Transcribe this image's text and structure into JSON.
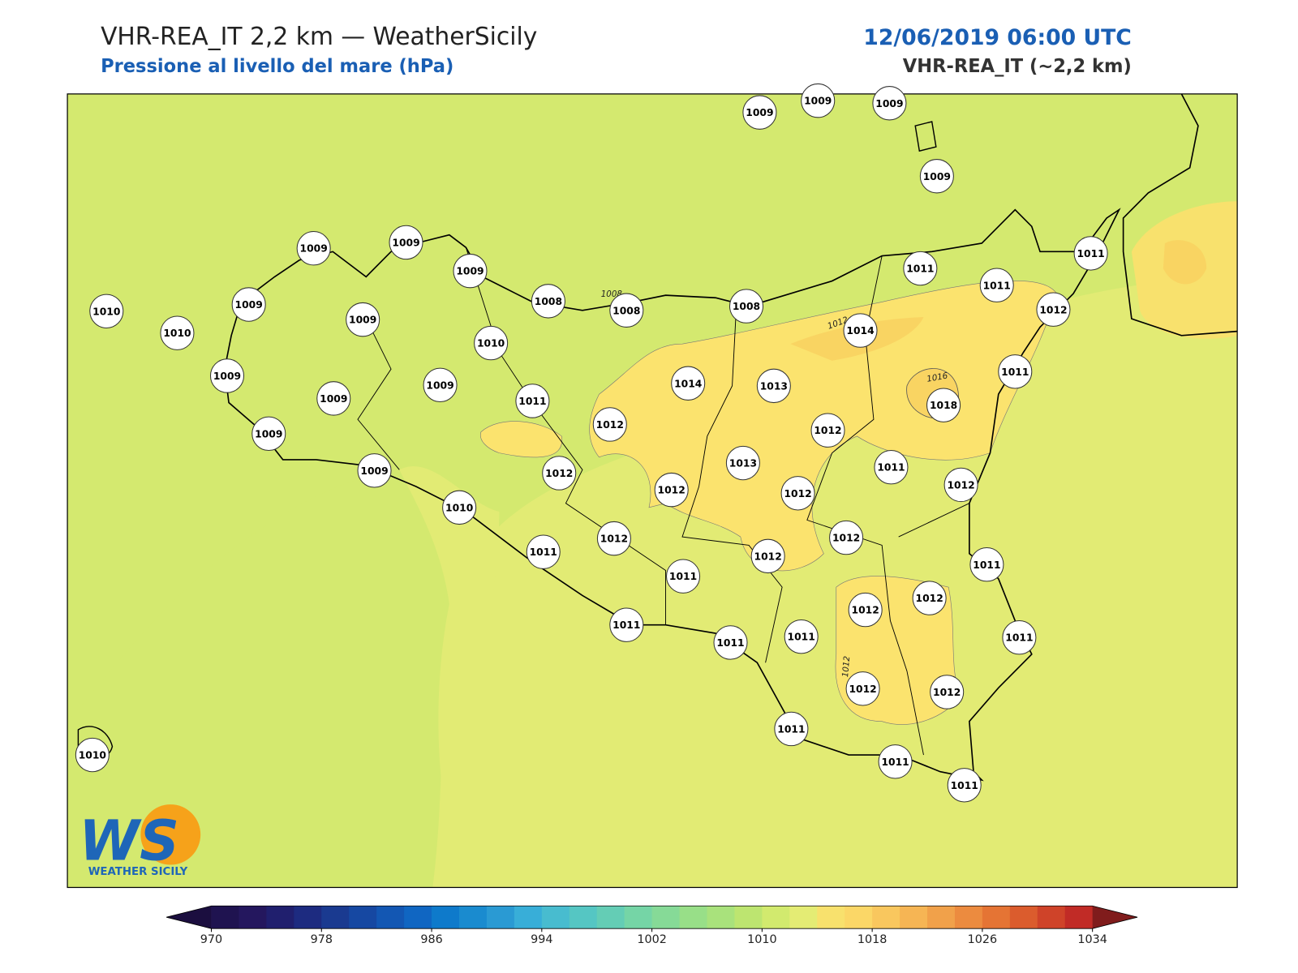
{
  "header": {
    "title": "VHR-REA_IT 2,2 km — WeatherSicily",
    "subtitle": "Pressione al livello del mare (hPa)",
    "datetime": "12/06/2019 06:00 UTC",
    "model": "VHR-REA_IT (~2,2 km)"
  },
  "logo": {
    "mark": "WS",
    "name": "WEATHER SICILY"
  },
  "stations": [
    1009,
    1009,
    1009,
    1009,
    1009,
    1009,
    1009,
    1010,
    1009,
    1009,
    1010,
    1008,
    1008,
    1008,
    1010,
    1009,
    1009,
    1009,
    1009,
    1011,
    1012,
    1014,
    1013,
    1014,
    1011,
    1011,
    1011,
    1012,
    1011,
    1018,
    1012,
    1011,
    1012,
    1013,
    1012,
    1012,
    1012,
    1009,
    1010,
    1011,
    1012,
    1012,
    1012,
    1011,
    1011,
    1012,
    1012,
    1011,
    1011,
    1011,
    1011,
    1012,
    1012,
    1011,
    1011,
    1011,
    1010
  ],
  "contour_labels": [
    "1008",
    "1012",
    "1016",
    "1012"
  ],
  "colorbar": {
    "lim": [
      970,
      1034
    ],
    "ticks": [
      970,
      978,
      986,
      994,
      1002,
      1010,
      1018,
      1026,
      1034
    ],
    "colors": [
      "#1f1350",
      "#24175e",
      "#201f6e",
      "#1d2b80",
      "#1a3a90",
      "#1648a2",
      "#1357b3",
      "#1066c2",
      "#0e7acb",
      "#1a8bcf",
      "#2a9ad3",
      "#38aed8",
      "#48bccf",
      "#55c6c3",
      "#64cdb5",
      "#75d5a6",
      "#86da97",
      "#98df88",
      "#a9e27c",
      "#bde570",
      "#d2ea6e",
      "#e4ec74",
      "#f8e16d",
      "#fbd767",
      "#f9c75e",
      "#f6b554",
      "#f1a14a",
      "#ec8b3f",
      "#e57434",
      "#db5c2d",
      "#cf4329",
      "#c12b26"
    ],
    "under": "#1b0e3f",
    "over": "#801c1c"
  }
}
